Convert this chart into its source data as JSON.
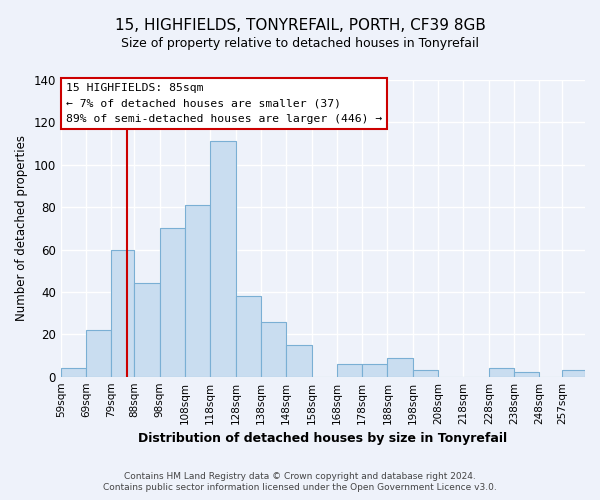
{
  "title": "15, HIGHFIELDS, TONYREFAIL, PORTH, CF39 8GB",
  "subtitle": "Size of property relative to detached houses in Tonyrefail",
  "xlabel": "Distribution of detached houses by size in Tonyrefail",
  "ylabel": "Number of detached properties",
  "bin_labels": [
    "59sqm",
    "69sqm",
    "79sqm",
    "88sqm",
    "98sqm",
    "108sqm",
    "118sqm",
    "128sqm",
    "138sqm",
    "148sqm",
    "158sqm",
    "168sqm",
    "178sqm",
    "188sqm",
    "198sqm",
    "208sqm",
    "218sqm",
    "228sqm",
    "238sqm",
    "248sqm",
    "257sqm"
  ],
  "bin_edges": [
    59,
    69,
    79,
    88,
    98,
    108,
    118,
    128,
    138,
    148,
    158,
    168,
    178,
    188,
    198,
    208,
    218,
    228,
    238,
    248,
    257
  ],
  "bar_heights": [
    4,
    22,
    60,
    44,
    70,
    81,
    111,
    38,
    26,
    15,
    0,
    6,
    6,
    9,
    3,
    0,
    0,
    4,
    2,
    0,
    3
  ],
  "bar_color": "#c9ddf0",
  "bar_edge_color": "#7aafd4",
  "property_line_x": 85,
  "annotation_title": "15 HIGHFIELDS: 85sqm",
  "annotation_line1": "← 7% of detached houses are smaller (37)",
  "annotation_line2": "89% of semi-detached houses are larger (446) →",
  "annotation_box_color": "#ffffff",
  "annotation_box_edge_color": "#cc0000",
  "vline_color": "#cc0000",
  "ylim": [
    0,
    140
  ],
  "yticks": [
    0,
    20,
    40,
    60,
    80,
    100,
    120,
    140
  ],
  "footer1": "Contains HM Land Registry data © Crown copyright and database right 2024.",
  "footer2": "Contains public sector information licensed under the Open Government Licence v3.0.",
  "background_color": "#eef2fa"
}
